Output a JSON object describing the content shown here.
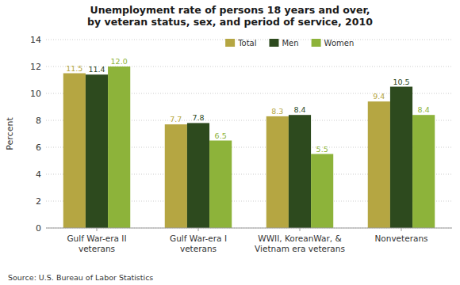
{
  "chart_data": {
    "type": "bar",
    "title": "Unemployment rate of persons 18 years and over,\nby veteran status, sex, and period of service, 2010",
    "categories": [
      "Gulf War-era II\nveterans",
      "Gulf War-era I\nveterans",
      "WWII, KoreanWar, &\nVietnam era veterans",
      "Nonveterans"
    ],
    "series": [
      {
        "name": "Total",
        "color": "#b5a642",
        "values": [
          11.5,
          7.7,
          8.3,
          9.4
        ]
      },
      {
        "name": "Men",
        "color": "#2d4a1e",
        "values": [
          11.4,
          7.8,
          8.4,
          10.5
        ]
      },
      {
        "name": "Women",
        "color": "#8db33a",
        "values": [
          12.0,
          6.5,
          5.5,
          8.4
        ],
        "value_labels": [
          "12.0",
          "6.5",
          "5.5",
          "8.4"
        ]
      }
    ],
    "y_label": "Percent",
    "ylim": [
      0,
      14
    ],
    "yticks": [
      0,
      2,
      4,
      6,
      8,
      10,
      12,
      14
    ],
    "grid": true,
    "legend": "top",
    "data_labels": true,
    "annotation": "Source: U.S. Bureau of Labor Statistics"
  }
}
